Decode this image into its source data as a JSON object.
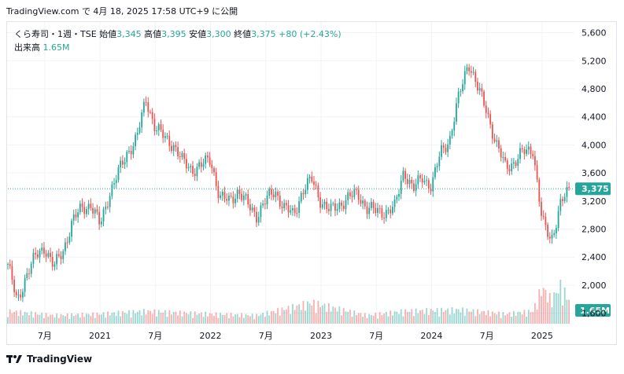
{
  "header": {
    "source": "TradingView.com で 4月 18, 2025 17:58 UTC+9 に公開"
  },
  "legend": {
    "symbol": "くら寿司・1週・TSE",
    "open_label": "始値",
    "open": "3,345",
    "high_label": "高値",
    "high": "3,395",
    "low_label": "安値",
    "low": "3,300",
    "close_label": "終値",
    "close": "3,375",
    "change": "+80 (+2.43%)",
    "volume_label": "出来高",
    "volume": "1.65M"
  },
  "footer": {
    "brand": "TradingView"
  },
  "colors": {
    "up": "#26a69a",
    "down": "#ef5350",
    "price_line": "#26a69a",
    "grid": "#f0f3fa"
  },
  "chart_data": {
    "type": "candlestick",
    "interval": "1W",
    "y_axis": {
      "ticks": [
        1600,
        2000,
        2400,
        2800,
        3200,
        3600,
        4000,
        4400,
        4800,
        5200,
        5600
      ],
      "tick_labels": [
        "1,600",
        "2,000",
        "2,400",
        "2,800",
        "3,200",
        "3,600",
        "4,000",
        "4,400",
        "4,800",
        "5,200",
        "5,600"
      ],
      "range": [
        1450,
        5730
      ]
    },
    "x_axis": {
      "labels": [
        "7月",
        "2021",
        "7月",
        "2022",
        "7月",
        "2023",
        "7月",
        "2024",
        "7月",
        "2025"
      ],
      "label_dates": [
        "2020-07",
        "2021-01",
        "2021-07",
        "2022-01",
        "2022-07",
        "2023-01",
        "2023-07",
        "2024-01",
        "2024-07",
        "2025-01"
      ],
      "range": [
        "2020-03",
        "2025-04"
      ]
    },
    "last_price": {
      "value": 3375,
      "label": "3,375"
    },
    "volume_last": {
      "value": "1.65M",
      "label": "1.65M"
    },
    "price_path": [
      [
        "2020-03",
        2300
      ],
      [
        "2020-04",
        1750
      ],
      [
        "2020-05",
        2150
      ],
      [
        "2020-06",
        2400
      ],
      [
        "2020-07",
        2550
      ],
      [
        "2020-08",
        2250
      ],
      [
        "2020-09",
        2500
      ],
      [
        "2020-10",
        2900
      ],
      [
        "2020-11",
        3100
      ],
      [
        "2020-12",
        3150
      ],
      [
        "2021-01",
        2850
      ],
      [
        "2021-02",
        3300
      ],
      [
        "2021-03",
        3600
      ],
      [
        "2021-04",
        3900
      ],
      [
        "2021-05",
        4100
      ],
      [
        "2021-06",
        4650
      ],
      [
        "2021-07",
        4250
      ],
      [
        "2021-08",
        4100
      ],
      [
        "2021-09",
        4000
      ],
      [
        "2021-10",
        3750
      ],
      [
        "2021-11",
        3650
      ],
      [
        "2021-12",
        3700
      ],
      [
        "2022-01",
        3800
      ],
      [
        "2022-02",
        3250
      ],
      [
        "2022-03",
        3200
      ],
      [
        "2022-04",
        3350
      ],
      [
        "2022-05",
        3150
      ],
      [
        "2022-06",
        3000
      ],
      [
        "2022-07",
        3200
      ],
      [
        "2022-08",
        3350
      ],
      [
        "2022-09",
        3100
      ],
      [
        "2022-10",
        3000
      ],
      [
        "2022-11",
        3350
      ],
      [
        "2022-12",
        3500
      ],
      [
        "2023-01",
        3200
      ],
      [
        "2023-02",
        3050
      ],
      [
        "2023-03",
        3150
      ],
      [
        "2023-04",
        3250
      ],
      [
        "2023-05",
        3300
      ],
      [
        "2023-06",
        3100
      ],
      [
        "2023-07",
        3050
      ],
      [
        "2023-08",
        3050
      ],
      [
        "2023-09",
        3100
      ],
      [
        "2023-10",
        3650
      ],
      [
        "2023-11",
        3350
      ],
      [
        "2023-12",
        3550
      ],
      [
        "2024-01",
        3400
      ],
      [
        "2024-02",
        3900
      ],
      [
        "2024-03",
        4100
      ],
      [
        "2024-04",
        4700
      ],
      [
        "2024-05",
        5200
      ],
      [
        "2024-06",
        4800
      ],
      [
        "2024-07",
        4500
      ],
      [
        "2024-08",
        4000
      ],
      [
        "2024-09",
        3700
      ],
      [
        "2024-10",
        3750
      ],
      [
        "2024-11",
        3900
      ],
      [
        "2024-12",
        3950
      ],
      [
        "2025-01",
        2900
      ],
      [
        "2025-02",
        2650
      ],
      [
        "2025-03",
        3150
      ],
      [
        "2025-04",
        3375
      ]
    ],
    "volume_path_M": [
      [
        "2020-03",
        0.9
      ],
      [
        "2020-08",
        0.6
      ],
      [
        "2021-01",
        0.7
      ],
      [
        "2021-06",
        0.9
      ],
      [
        "2022-01",
        0.7
      ],
      [
        "2022-06",
        0.6
      ],
      [
        "2022-12",
        1.5
      ],
      [
        "2023-06",
        0.6
      ],
      [
        "2023-10",
        0.9
      ],
      [
        "2024-04",
        1.0
      ],
      [
        "2024-09",
        0.7
      ],
      [
        "2024-12",
        0.9
      ],
      [
        "2025-01",
        2.6
      ],
      [
        "2025-02",
        1.7
      ],
      [
        "2025-03",
        2.7
      ],
      [
        "2025-04",
        1.65
      ]
    ]
  }
}
